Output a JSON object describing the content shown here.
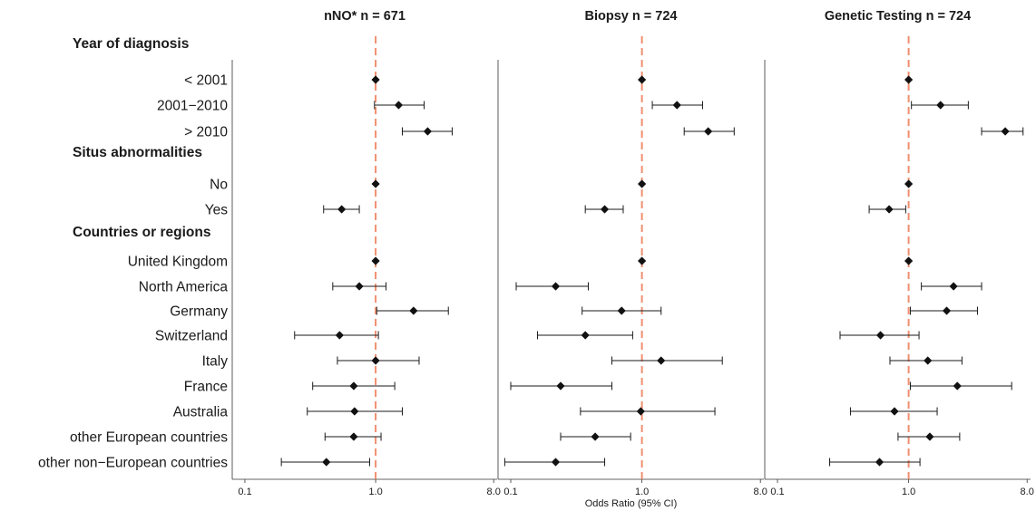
{
  "colors": {
    "reference_line": "#f08f6f",
    "marker": "#111111",
    "axis": "#333333"
  },
  "chart_data": {
    "type": "forest",
    "xlabel": "Odds Ratio (95% CI)",
    "xscale": "log",
    "xlim": [
      0.08,
      8.5
    ],
    "xticks": [
      0.1,
      1.0,
      8.0
    ],
    "xtick_labels": [
      "0.1",
      "1.0",
      "8.0"
    ],
    "reference_value": 1.0,
    "grid": false,
    "legend": "none",
    "groups": [
      {
        "title": "Year of diagnosis",
        "rows": [
          "< 2001",
          "2001−2010",
          "> 2010"
        ]
      },
      {
        "title": "Situs abnormalities",
        "rows": [
          "No",
          "Yes"
        ]
      },
      {
        "title": "Countries or regions",
        "rows": [
          "United Kingdom",
          "North America",
          "Germany",
          "Switzerland",
          "Italy",
          "France",
          "Australia",
          "other European countries",
          "other non−European countries"
        ]
      }
    ],
    "panels": [
      {
        "title": "nNO* n = 671",
        "estimates": [
          [
            [
              1.0,
              1.0,
              1.0
            ],
            [
              1.5,
              0.98,
              2.35
            ],
            [
              2.5,
              1.6,
              3.85
            ]
          ],
          [
            [
              1.0,
              1.0,
              1.0
            ],
            [
              0.55,
              0.4,
              0.75
            ]
          ],
          [
            [
              1.0,
              1.0,
              1.0
            ],
            [
              0.75,
              0.47,
              1.2
            ],
            [
              1.95,
              1.02,
              3.6
            ],
            [
              0.53,
              0.24,
              1.05
            ],
            [
              1.0,
              0.51,
              2.15
            ],
            [
              0.68,
              0.33,
              1.4
            ],
            [
              0.69,
              0.3,
              1.6
            ],
            [
              0.68,
              0.41,
              1.1
            ],
            [
              0.42,
              0.19,
              0.9
            ]
          ]
        ]
      },
      {
        "title": "Biopsy n = 724",
        "estimates": [
          [
            [
              1.0,
              1.0,
              1.0
            ],
            [
              1.85,
              1.2,
              2.9
            ],
            [
              3.2,
              2.1,
              5.05
            ]
          ],
          [
            [
              1.0,
              1.0,
              1.0
            ],
            [
              0.52,
              0.37,
              0.72
            ]
          ],
          [
            [
              1.0,
              1.0,
              1.0
            ],
            [
              0.22,
              0.11,
              0.39
            ],
            [
              0.7,
              0.35,
              1.4
            ],
            [
              0.37,
              0.16,
              0.85
            ],
            [
              1.4,
              0.59,
              4.1
            ],
            [
              0.24,
              0.1,
              0.59
            ],
            [
              0.98,
              0.34,
              3.6
            ],
            [
              0.44,
              0.24,
              0.82
            ],
            [
              0.22,
              0.09,
              0.52
            ]
          ]
        ]
      },
      {
        "title": "Genetic Testing n = 724",
        "estimates": [
          [
            [
              1.0,
              1.0,
              1.0
            ],
            [
              1.75,
              1.05,
              2.85
            ],
            [
              5.45,
              3.6,
              7.45
            ]
          ],
          [
            [
              1.0,
              1.0,
              1.0
            ],
            [
              0.71,
              0.5,
              0.95
            ]
          ],
          [
            [
              1.0,
              1.0,
              1.0
            ],
            [
              2.2,
              1.25,
              3.6
            ],
            [
              1.95,
              1.03,
              3.35
            ],
            [
              0.61,
              0.3,
              1.2
            ],
            [
              1.4,
              0.72,
              2.55
            ],
            [
              2.35,
              1.03,
              6.1
            ],
            [
              0.78,
              0.36,
              1.65
            ],
            [
              1.45,
              0.83,
              2.45
            ],
            [
              0.6,
              0.25,
              1.22
            ]
          ]
        ]
      }
    ]
  }
}
